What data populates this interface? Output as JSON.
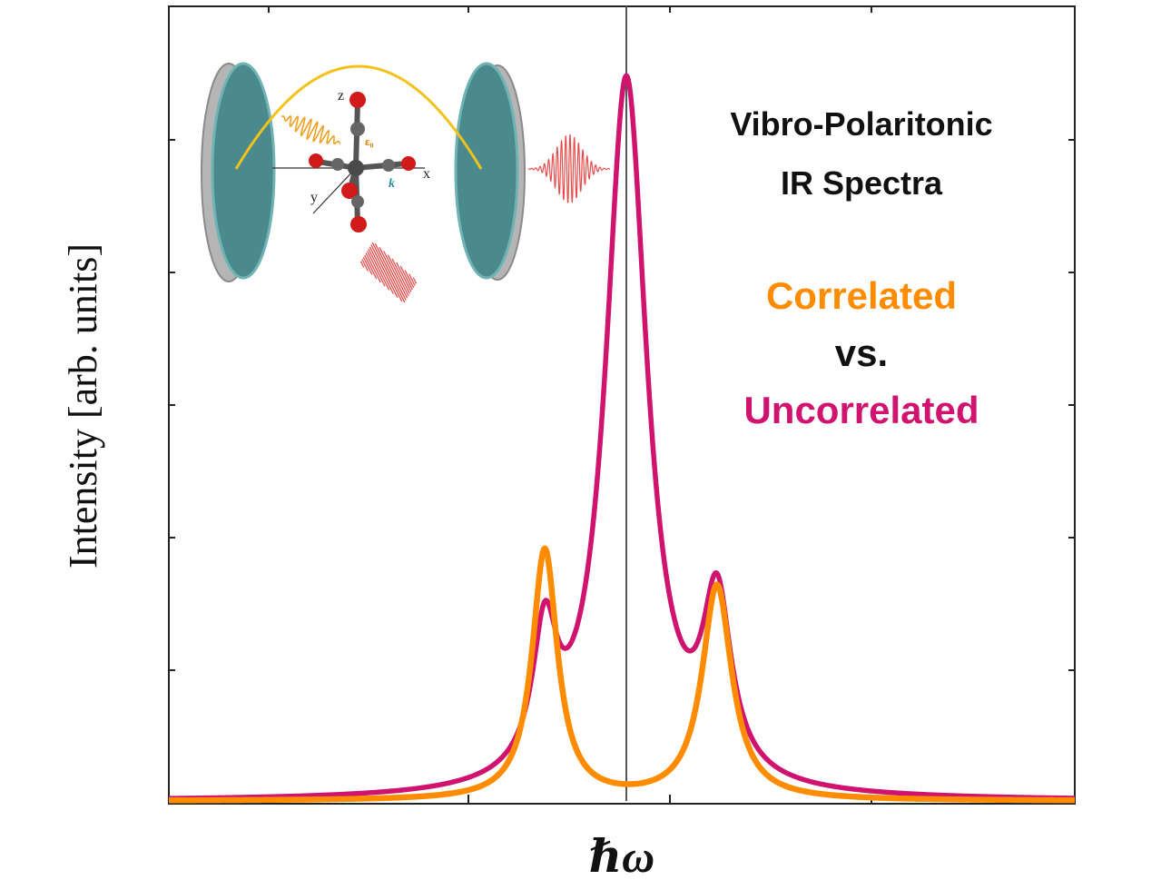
{
  "chart_data": {
    "type": "line",
    "title": "Vibro-Polaritonic IR Spectra",
    "title_lines": [
      "Vibro-Polaritonic",
      "IR Spectra"
    ],
    "subtitle_lines": [
      "Correlated",
      "vs.",
      "Uncorrelated"
    ],
    "xlabel": "ℏω",
    "ylabel": "Intensity [arb. units]",
    "x_range": [
      0,
      100
    ],
    "ylim": [
      0,
      1.0
    ],
    "cavity_frequency_x": 50.5,
    "legend_position": "right",
    "grid": false,
    "colors": {
      "correlated": "#ff8c00",
      "uncorrelated": "#d0136e",
      "reference_line": "#555555",
      "cavity_mirror": "#4a8a8c",
      "cavity_field": "#f2c21b",
      "emission": "#e84d4d"
    },
    "series": [
      {
        "name": "Uncorrelated",
        "key": "uncorrelated",
        "peaks": [
          {
            "center": 41.5,
            "amplitude": 0.17,
            "width": 1.6
          },
          {
            "center": 50.5,
            "amplitude": 0.9,
            "width": 2.8
          },
          {
            "center": 60.5,
            "amplitude": 0.22,
            "width": 1.9
          }
        ]
      },
      {
        "name": "Correlated",
        "key": "correlated",
        "peaks": [
          {
            "center": 41.5,
            "amplitude": 0.315,
            "width": 1.7
          },
          {
            "center": 60.5,
            "amplitude": 0.27,
            "width": 2.0
          }
        ]
      }
    ],
    "inset": {
      "axis_labels": {
        "z": "z",
        "x": "x",
        "y": "y",
        "polarization": "ε₀",
        "wavevector": "k"
      }
    }
  }
}
